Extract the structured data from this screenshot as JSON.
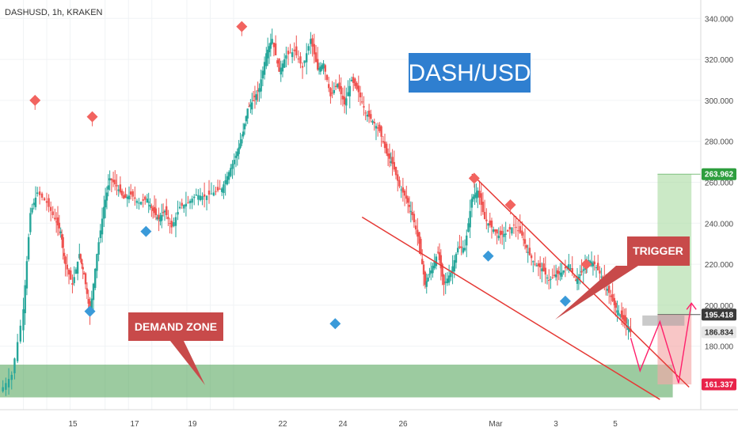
{
  "header": {
    "symbol_label": "DASHUSD, 1h, KRAKEN"
  },
  "title_box": {
    "text": "DASH/USD",
    "color": "#2f7fd0"
  },
  "callouts": {
    "demand": {
      "text": "DEMAND ZONE",
      "color": "#c84a4a"
    },
    "trigger": {
      "text": "TRIGGER",
      "color": "#c84a4a"
    }
  },
  "price_badges": {
    "target": {
      "value": "263.962",
      "color": "#2e9e3e",
      "price": 263.962
    },
    "entry": {
      "value": "195.418",
      "color": "#3a3a3a",
      "price": 195.418
    },
    "current": {
      "value": "186.834",
      "color": "#e6e6e6",
      "price": 186.834
    },
    "stop": {
      "value": "161.337",
      "color": "#e8234a",
      "price": 161.337
    }
  },
  "colors": {
    "up": "#26a69a",
    "down": "#ef5350",
    "high_marker": "#f2635f",
    "low_marker": "#3a9ad9",
    "channel": "#e53935",
    "path": "#ff1f6b",
    "demand_zone": "#5aa861",
    "profit_zone": "#a8dba0",
    "loss_zone": "#f4a7a7"
  },
  "chart_data": {
    "type": "candlestick",
    "symbol": "DASHUSD",
    "timeframe": "1h",
    "exchange": "KRAKEN",
    "x_ticks": [
      "15",
      "17",
      "19",
      "22",
      "24",
      "26",
      "Mar",
      "3",
      "5"
    ],
    "y_ticks": [
      "340.000",
      "320.000",
      "300.000",
      "280.000",
      "260.000",
      "240.000",
      "220.000",
      "200.000",
      "180.000"
    ],
    "y_tick_values": [
      340,
      320,
      300,
      280,
      260,
      240,
      220,
      200,
      180
    ],
    "ylim": [
      149,
      349
    ],
    "x_range": [
      13,
      73
    ],
    "price_path": [
      [
        13.0,
        158
      ],
      [
        14.0,
        166
      ],
      [
        15.0,
        198
      ],
      [
        15.6,
        245
      ],
      [
        16.2,
        255
      ],
      [
        17.0,
        250
      ],
      [
        17.7,
        242
      ],
      [
        18.2,
        236
      ],
      [
        18.6,
        220
      ],
      [
        19.2,
        210
      ],
      [
        19.8,
        225
      ],
      [
        20.2,
        215
      ],
      [
        20.7,
        196
      ],
      [
        21.3,
        225
      ],
      [
        21.9,
        248
      ],
      [
        22.4,
        262
      ],
      [
        23.0,
        258
      ],
      [
        23.6,
        252
      ],
      [
        24.2,
        254
      ],
      [
        24.9,
        250
      ],
      [
        25.6,
        252
      ],
      [
        26.1,
        246
      ],
      [
        26.6,
        242
      ],
      [
        27.1,
        246
      ],
      [
        27.7,
        238
      ],
      [
        28.4,
        248
      ],
      [
        29.1,
        250
      ],
      [
        29.8,
        254
      ],
      [
        30.5,
        253
      ],
      [
        31.3,
        255
      ],
      [
        32.0,
        257
      ],
      [
        32.6,
        265
      ],
      [
        33.2,
        273
      ],
      [
        33.7,
        281
      ],
      [
        34.2,
        296
      ],
      [
        34.7,
        300
      ],
      [
        35.2,
        306
      ],
      [
        35.8,
        323
      ],
      [
        36.3,
        330
      ],
      [
        36.9,
        314
      ],
      [
        37.5,
        322
      ],
      [
        38.2,
        324
      ],
      [
        38.9,
        316
      ],
      [
        39.6,
        330
      ],
      [
        40.2,
        315
      ],
      [
        40.7,
        318
      ],
      [
        41.3,
        302
      ],
      [
        41.9,
        308
      ],
      [
        42.5,
        298
      ],
      [
        43.1,
        310
      ],
      [
        43.7,
        304
      ],
      [
        44.3,
        294
      ],
      [
        44.9,
        290
      ],
      [
        45.5,
        285
      ],
      [
        46.1,
        274
      ],
      [
        46.6,
        269
      ],
      [
        47.2,
        258
      ],
      [
        47.8,
        252
      ],
      [
        48.3,
        244
      ],
      [
        48.9,
        230
      ],
      [
        49.4,
        210
      ],
      [
        49.9,
        217
      ],
      [
        50.5,
        226
      ],
      [
        51.0,
        210
      ],
      [
        51.6,
        216
      ],
      [
        52.2,
        228
      ],
      [
        52.8,
        228
      ],
      [
        53.4,
        252
      ],
      [
        53.9,
        256
      ],
      [
        54.5,
        242
      ],
      [
        55.1,
        238
      ],
      [
        55.7,
        234
      ],
      [
        56.3,
        235
      ],
      [
        57.0,
        239
      ],
      [
        57.7,
        234
      ],
      [
        58.2,
        226
      ],
      [
        58.8,
        220
      ],
      [
        59.4,
        218
      ],
      [
        60.0,
        212
      ],
      [
        60.6,
        215
      ],
      [
        61.1,
        216
      ],
      [
        61.7,
        220
      ],
      [
        62.3,
        212
      ],
      [
        62.8,
        216
      ],
      [
        63.4,
        222
      ],
      [
        63.9,
        220
      ],
      [
        64.5,
        214
      ],
      [
        65.0,
        208
      ],
      [
        65.6,
        200
      ],
      [
        66.1,
        195
      ],
      [
        66.6,
        191
      ],
      [
        67.0,
        187
      ]
    ],
    "swing_highs": [
      [
        16.0,
        300
      ],
      [
        20.9,
        292
      ],
      [
        33.7,
        336
      ],
      [
        53.6,
        262
      ],
      [
        56.7,
        249
      ],
      [
        63.2,
        220
      ]
    ],
    "swing_lows": [
      [
        20.7,
        197
      ],
      [
        25.5,
        236
      ],
      [
        41.7,
        191
      ],
      [
        54.8,
        224
      ],
      [
        61.4,
        202
      ]
    ],
    "channel_upper": [
      [
        53.4,
        264
      ],
      [
        72.0,
        160
      ]
    ],
    "channel_lower": [
      [
        44.0,
        243
      ],
      [
        69.5,
        154
      ]
    ],
    "projected_path": [
      [
        67.0,
        184
      ],
      [
        67.8,
        168
      ],
      [
        69.5,
        192
      ],
      [
        71.1,
        162
      ],
      [
        72.2,
        201
      ]
    ],
    "zones": {
      "demand": {
        "from": 155,
        "to": 171
      },
      "target_box": {
        "price_top": 263.962,
        "price_bottom": 195.418
      },
      "stop_box": {
        "price_top": 195.418,
        "price_bottom": 161.337
      },
      "entry_box": {
        "from": 190,
        "to": 195
      }
    }
  }
}
